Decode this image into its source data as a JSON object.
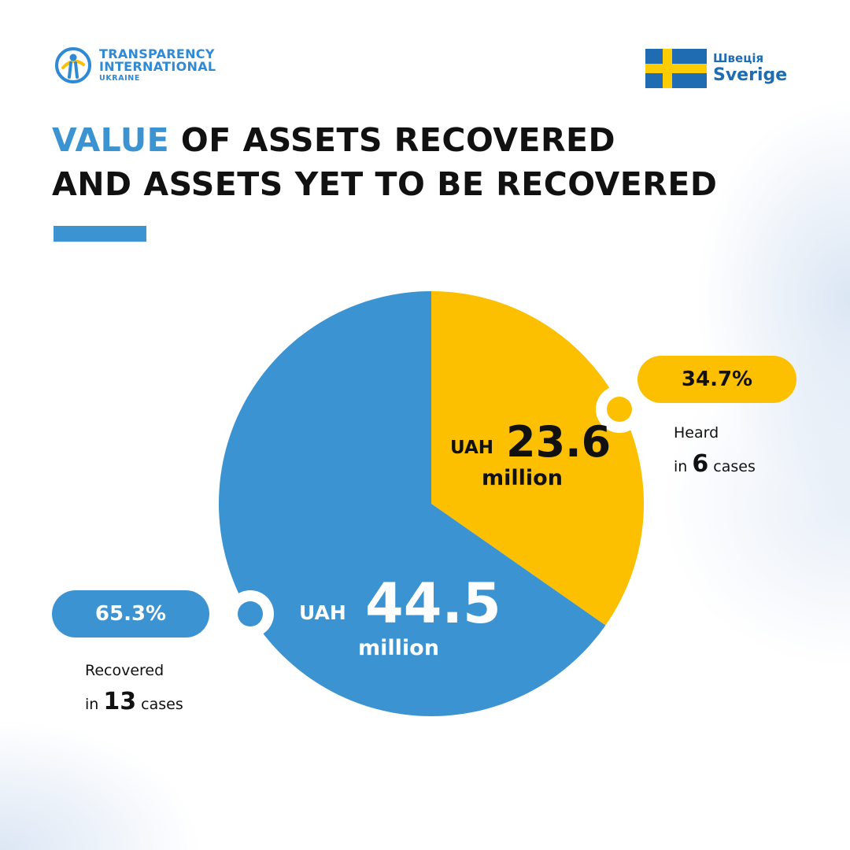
{
  "header": {
    "ti_logo": {
      "line1": "TRANSPARENCY",
      "line2": "INTERNATIONAL",
      "line3": "UKRAINE"
    },
    "sweden_logo": {
      "ua_text": "Швеція",
      "sv_text": "Sverige"
    }
  },
  "title": {
    "highlight": "VALUE",
    "rest_line1": " OF ASSETS RECOVERED",
    "line2": "AND ASSETS YET TO BE RECOVERED"
  },
  "colors": {
    "accent_blue": "#3b93d2",
    "accent_yellow": "#fcc000",
    "text_dark": "#111111",
    "sweden_blue": "#1f6cb3",
    "sweden_yellow": "#fecc02"
  },
  "icons": [
    "ti-emblem-icon",
    "sweden-flag-icon"
  ],
  "chart_data": {
    "type": "pie",
    "slices": [
      {
        "label": "Heard",
        "percent": 34.7,
        "percent_text": "34.7%",
        "value_prefix": "UAH",
        "value_number": "23.6",
        "value_unit": "million",
        "value": 23.6,
        "cases_prefix": "in",
        "cases": "6",
        "cases_suffix": "cases",
        "color": "#fcc000"
      },
      {
        "label": "Recovered",
        "percent": 65.3,
        "percent_text": "65.3%",
        "value_prefix": "UAH",
        "value_number": "44.5",
        "value_unit": "million",
        "value": 44.5,
        "cases_prefix": "in",
        "cases": "13",
        "cases_suffix": "cases",
        "color": "#3b93d2"
      }
    ]
  }
}
